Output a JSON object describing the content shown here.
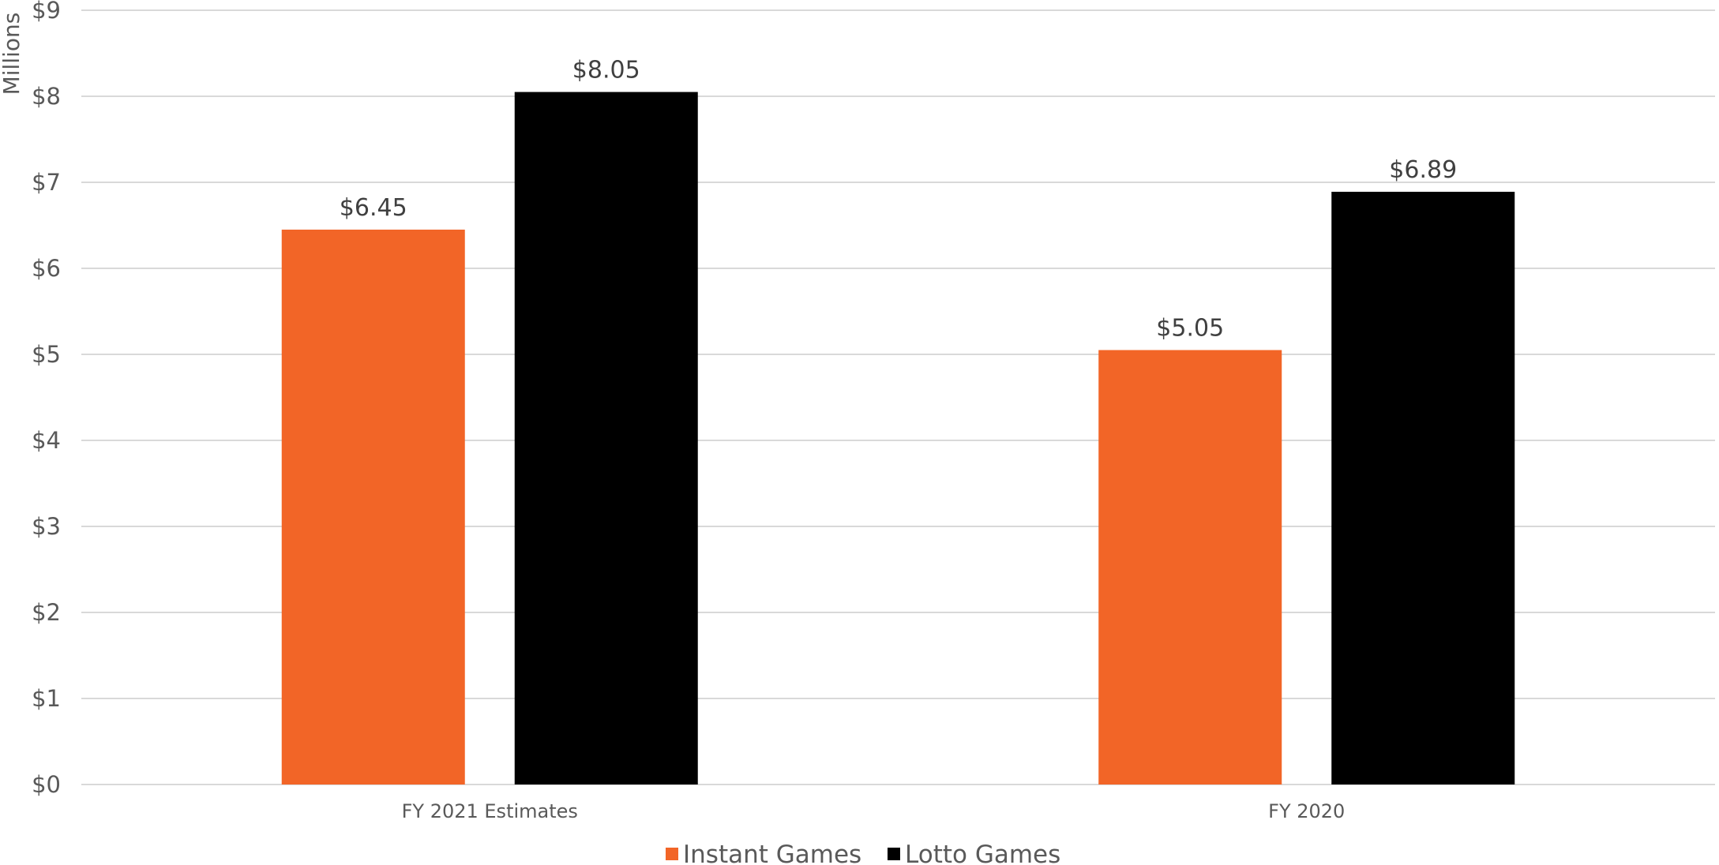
{
  "chart_data": {
    "type": "bar",
    "categories": [
      "FY 2021 Estimates",
      "FY 2020"
    ],
    "series": [
      {
        "name": "Instant Games",
        "values": [
          6.45,
          5.05
        ],
        "labels": [
          "$6.45",
          "$5.05"
        ],
        "color": "#f26527"
      },
      {
        "name": "Lotto Games",
        "values": [
          8.05,
          6.89
        ],
        "labels": [
          "$8.05",
          "$6.89"
        ],
        "color": "#000000"
      }
    ],
    "ylabel": "Millions",
    "ylim": [
      0,
      9
    ],
    "yticks": [
      "$0",
      "$1",
      "$2",
      "$3",
      "$4",
      "$5",
      "$6",
      "$7",
      "$8",
      "$9"
    ],
    "grid": true,
    "legend": "bottom-center"
  }
}
